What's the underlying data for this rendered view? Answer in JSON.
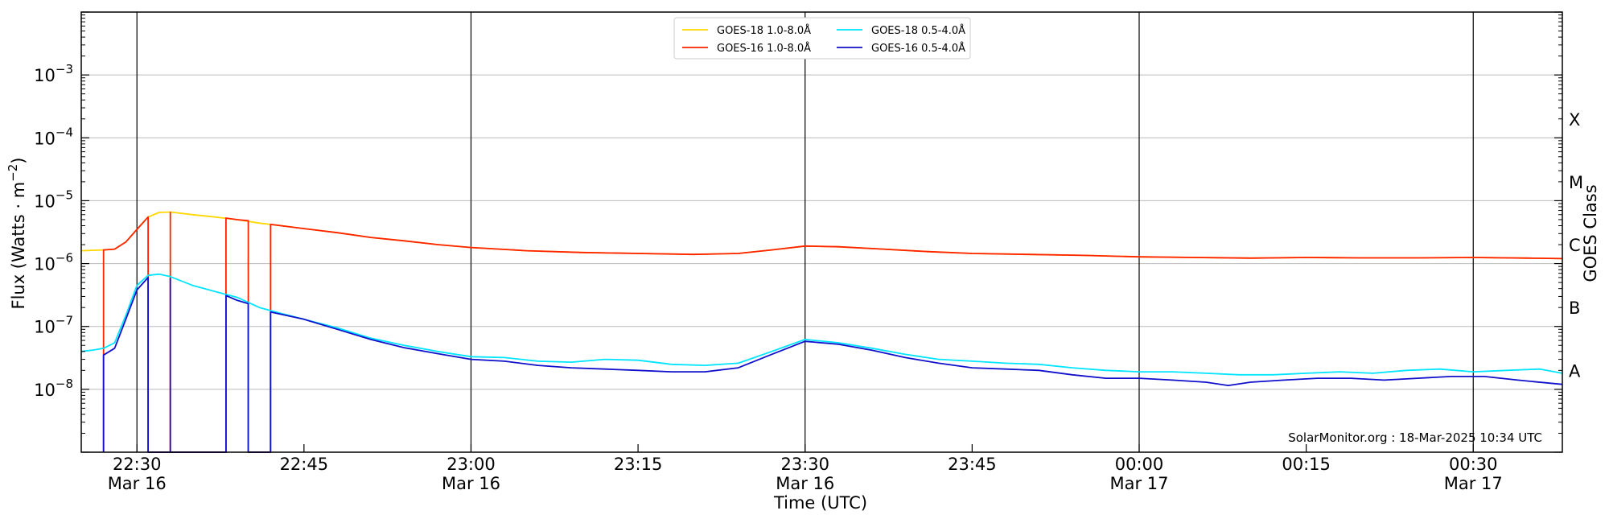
{
  "chart_data": {
    "type": "line",
    "title": "",
    "xlabel": "Time (UTC)",
    "ylabel": "Flux (Watts · m⁻²)",
    "y2label": "GOES Class",
    "yscale": "log",
    "ylim": [
      1e-09,
      0.01
    ],
    "xlim": [
      "22:25",
      "00:38"
    ],
    "grid": "horizontal at decades",
    "legend_position": "top-center",
    "x_ticks": [
      {
        "t": "22:30",
        "date": "Mar 16"
      },
      {
        "t": "22:45",
        "date": ""
      },
      {
        "t": "23:00",
        "date": "Mar 16"
      },
      {
        "t": "23:15",
        "date": ""
      },
      {
        "t": "23:30",
        "date": "Mar 16"
      },
      {
        "t": "23:45",
        "date": ""
      },
      {
        "t": "00:00",
        "date": "Mar 17"
      },
      {
        "t": "00:15",
        "date": ""
      },
      {
        "t": "00:30",
        "date": "Mar 17"
      }
    ],
    "y_ticks": [
      {
        "base": "10",
        "exp": "−3",
        "value": 0.001
      },
      {
        "base": "10",
        "exp": "−4",
        "value": 0.0001
      },
      {
        "base": "10",
        "exp": "−5",
        "value": 1e-05
      },
      {
        "base": "10",
        "exp": "−6",
        "value": 1e-06
      },
      {
        "base": "10",
        "exp": "−7",
        "value": 1e-07
      },
      {
        "base": "10",
        "exp": "−8",
        "value": 1e-08
      }
    ],
    "goes_classes": [
      {
        "label": "X",
        "value": 0.0002
      },
      {
        "label": "M",
        "value": 2e-05
      },
      {
        "label": "C",
        "value": 2e-06
      },
      {
        "label": "B",
        "value": 2e-07
      },
      {
        "label": "A",
        "value": 2e-08
      }
    ],
    "series": [
      {
        "name": "GOES-18 1.0-8.0Å",
        "color": "#ffd700",
        "points": [
          [
            "22:25",
            1.6e-06
          ],
          [
            "22:27",
            1.65e-06
          ],
          [
            "22:28",
            1.7e-06
          ],
          [
            "22:29",
            2.2e-06
          ],
          [
            "22:30",
            3.5e-06
          ],
          [
            "22:31",
            5.5e-06
          ],
          [
            "22:32",
            6.5e-06
          ],
          [
            "22:33",
            6.6e-06
          ],
          [
            "22:35",
            6e-06
          ],
          [
            "22:37",
            5.5e-06
          ],
          [
            "22:39",
            5e-06
          ],
          [
            "22:41",
            4.4e-06
          ],
          [
            "22:43",
            4e-06
          ],
          [
            "22:45",
            3.6e-06
          ],
          [
            "22:48",
            3.1e-06
          ],
          [
            "22:51",
            2.6e-06
          ],
          [
            "22:54",
            2.3e-06
          ],
          [
            "22:57",
            2e-06
          ],
          [
            "23:00",
            1.8e-06
          ],
          [
            "23:05",
            1.6e-06
          ],
          [
            "23:10",
            1.5e-06
          ],
          [
            "23:15",
            1.45e-06
          ],
          [
            "23:20",
            1.4e-06
          ],
          [
            "23:24",
            1.45e-06
          ],
          [
            "23:27",
            1.65e-06
          ],
          [
            "23:30",
            1.9e-06
          ],
          [
            "23:33",
            1.85e-06
          ],
          [
            "23:37",
            1.7e-06
          ],
          [
            "23:41",
            1.55e-06
          ],
          [
            "23:45",
            1.45e-06
          ],
          [
            "23:50",
            1.4e-06
          ],
          [
            "23:55",
            1.35e-06
          ],
          [
            "00:00",
            1.28e-06
          ],
          [
            "00:05",
            1.25e-06
          ],
          [
            "00:10",
            1.22e-06
          ],
          [
            "00:15",
            1.25e-06
          ],
          [
            "00:20",
            1.23e-06
          ],
          [
            "00:25",
            1.23e-06
          ],
          [
            "00:30",
            1.25e-06
          ],
          [
            "00:35",
            1.22e-06
          ],
          [
            "00:38",
            1.2e-06
          ]
        ]
      },
      {
        "name": "GOES-16 1.0-8.0Å",
        "color": "#ff2200",
        "points": [
          [
            "22:27",
            1e-09
          ],
          [
            "22:27",
            1.65e-06
          ],
          [
            "22:28",
            1.7e-06
          ],
          [
            "22:29",
            2.2e-06
          ],
          [
            "22:30",
            3.5e-06
          ],
          [
            "22:31",
            5.5e-06
          ],
          [
            "22:31",
            1e-09
          ],
          [
            "22:33",
            1e-09
          ],
          [
            "22:33",
            6.5e-06
          ],
          [
            "22:33",
            1e-09
          ],
          [
            "22:38",
            1e-09
          ],
          [
            "22:38",
            5.3e-06
          ],
          [
            "22:39",
            5e-06
          ],
          [
            "22:40",
            4.8e-06
          ],
          [
            "22:40",
            1e-09
          ],
          [
            "22:42",
            1e-09
          ],
          [
            "22:42",
            4.2e-06
          ],
          [
            "22:45",
            3.6e-06
          ],
          [
            "22:48",
            3.1e-06
          ],
          [
            "22:51",
            2.6e-06
          ],
          [
            "22:54",
            2.3e-06
          ],
          [
            "22:57",
            2e-06
          ],
          [
            "23:00",
            1.8e-06
          ],
          [
            "23:05",
            1.6e-06
          ],
          [
            "23:10",
            1.5e-06
          ],
          [
            "23:15",
            1.45e-06
          ],
          [
            "23:20",
            1.4e-06
          ],
          [
            "23:24",
            1.45e-06
          ],
          [
            "23:27",
            1.65e-06
          ],
          [
            "23:30",
            1.9e-06
          ],
          [
            "23:33",
            1.85e-06
          ],
          [
            "23:37",
            1.7e-06
          ],
          [
            "23:41",
            1.55e-06
          ],
          [
            "23:45",
            1.45e-06
          ],
          [
            "23:50",
            1.4e-06
          ],
          [
            "23:55",
            1.35e-06
          ],
          [
            "00:00",
            1.28e-06
          ],
          [
            "00:05",
            1.25e-06
          ],
          [
            "00:10",
            1.22e-06
          ],
          [
            "00:15",
            1.25e-06
          ],
          [
            "00:20",
            1.23e-06
          ],
          [
            "00:25",
            1.23e-06
          ],
          [
            "00:30",
            1.25e-06
          ],
          [
            "00:35",
            1.22e-06
          ],
          [
            "00:38",
            1.2e-06
          ]
        ]
      },
      {
        "name": "GOES-18 0.5-4.0Å",
        "color": "#00e5ff",
        "points": [
          [
            "22:25",
            4e-08
          ],
          [
            "22:26",
            4.2e-08
          ],
          [
            "22:27",
            4.5e-08
          ],
          [
            "22:28",
            5.5e-08
          ],
          [
            "22:29",
            1.5e-07
          ],
          [
            "22:30",
            4.5e-07
          ],
          [
            "22:31",
            6.5e-07
          ],
          [
            "22:32",
            6.8e-07
          ],
          [
            "22:33",
            6.2e-07
          ],
          [
            "22:35",
            4.5e-07
          ],
          [
            "22:37",
            3.6e-07
          ],
          [
            "22:39",
            2.9e-07
          ],
          [
            "22:41",
            2e-07
          ],
          [
            "22:43",
            1.6e-07
          ],
          [
            "22:45",
            1.3e-07
          ],
          [
            "22:48",
            9.5e-08
          ],
          [
            "22:51",
            6.5e-08
          ],
          [
            "22:54",
            5e-08
          ],
          [
            "22:57",
            4e-08
          ],
          [
            "23:00",
            3.3e-08
          ],
          [
            "23:03",
            3.2e-08
          ],
          [
            "23:06",
            2.8e-08
          ],
          [
            "23:09",
            2.7e-08
          ],
          [
            "23:12",
            3e-08
          ],
          [
            "23:15",
            2.9e-08
          ],
          [
            "23:18",
            2.5e-08
          ],
          [
            "23:21",
            2.4e-08
          ],
          [
            "23:24",
            2.6e-08
          ],
          [
            "23:27",
            4e-08
          ],
          [
            "23:30",
            6.2e-08
          ],
          [
            "23:33",
            5.5e-08
          ],
          [
            "23:36",
            4.5e-08
          ],
          [
            "23:39",
            3.6e-08
          ],
          [
            "23:42",
            3e-08
          ],
          [
            "23:45",
            2.8e-08
          ],
          [
            "23:48",
            2.6e-08
          ],
          [
            "23:51",
            2.5e-08
          ],
          [
            "23:54",
            2.2e-08
          ],
          [
            "23:57",
            2e-08
          ],
          [
            "00:00",
            1.9e-08
          ],
          [
            "00:03",
            1.9e-08
          ],
          [
            "00:06",
            1.8e-08
          ],
          [
            "00:09",
            1.7e-08
          ],
          [
            "00:12",
            1.7e-08
          ],
          [
            "00:15",
            1.8e-08
          ],
          [
            "00:18",
            1.9e-08
          ],
          [
            "00:21",
            1.8e-08
          ],
          [
            "00:24",
            2e-08
          ],
          [
            "00:27",
            2.1e-08
          ],
          [
            "00:30",
            1.9e-08
          ],
          [
            "00:33",
            2e-08
          ],
          [
            "00:36",
            2.1e-08
          ],
          [
            "00:38",
            1.8e-08
          ]
        ]
      },
      {
        "name": "GOES-16 0.5-4.0Å",
        "color": "#1010cc",
        "points": [
          [
            "22:27",
            1e-09
          ],
          [
            "22:27",
            3.5e-08
          ],
          [
            "22:28",
            4.5e-08
          ],
          [
            "22:29",
            1.3e-07
          ],
          [
            "22:30",
            3.8e-07
          ],
          [
            "22:31",
            6e-07
          ],
          [
            "22:31",
            1e-09
          ],
          [
            "22:33",
            1e-09
          ],
          [
            "22:33",
            5.8e-07
          ],
          [
            "22:33",
            1e-09
          ],
          [
            "22:38",
            1e-09
          ],
          [
            "22:38",
            3.1e-07
          ],
          [
            "22:39",
            2.6e-07
          ],
          [
            "22:40",
            2.3e-07
          ],
          [
            "22:40",
            1e-09
          ],
          [
            "22:42",
            1e-09
          ],
          [
            "22:42",
            1.7e-07
          ],
          [
            "22:45",
            1.3e-07
          ],
          [
            "22:48",
            9e-08
          ],
          [
            "22:51",
            6.2e-08
          ],
          [
            "22:54",
            4.6e-08
          ],
          [
            "22:57",
            3.7e-08
          ],
          [
            "23:00",
            3e-08
          ],
          [
            "23:03",
            2.8e-08
          ],
          [
            "23:06",
            2.4e-08
          ],
          [
            "23:09",
            2.2e-08
          ],
          [
            "23:12",
            2.1e-08
          ],
          [
            "23:15",
            2e-08
          ],
          [
            "23:18",
            1.9e-08
          ],
          [
            "23:21",
            1.9e-08
          ],
          [
            "23:24",
            2.2e-08
          ],
          [
            "23:27",
            3.6e-08
          ],
          [
            "23:30",
            5.8e-08
          ],
          [
            "23:33",
            5.2e-08
          ],
          [
            "23:36",
            4.2e-08
          ],
          [
            "23:39",
            3.2e-08
          ],
          [
            "23:42",
            2.6e-08
          ],
          [
            "23:45",
            2.2e-08
          ],
          [
            "23:48",
            2.1e-08
          ],
          [
            "23:51",
            2e-08
          ],
          [
            "23:54",
            1.7e-08
          ],
          [
            "23:57",
            1.5e-08
          ],
          [
            "00:00",
            1.5e-08
          ],
          [
            "00:03",
            1.4e-08
          ],
          [
            "00:06",
            1.3e-08
          ],
          [
            "00:08",
            1.15e-08
          ],
          [
            "00:10",
            1.3e-08
          ],
          [
            "00:13",
            1.4e-08
          ],
          [
            "00:16",
            1.5e-08
          ],
          [
            "00:19",
            1.5e-08
          ],
          [
            "00:22",
            1.4e-08
          ],
          [
            "00:25",
            1.5e-08
          ],
          [
            "00:28",
            1.6e-08
          ],
          [
            "00:31",
            1.6e-08
          ],
          [
            "00:34",
            1.4e-08
          ],
          [
            "00:38",
            1.2e-08
          ]
        ]
      }
    ],
    "credit": "SolarMonitor.org : 18-Mar-2025 10:34 UTC"
  }
}
